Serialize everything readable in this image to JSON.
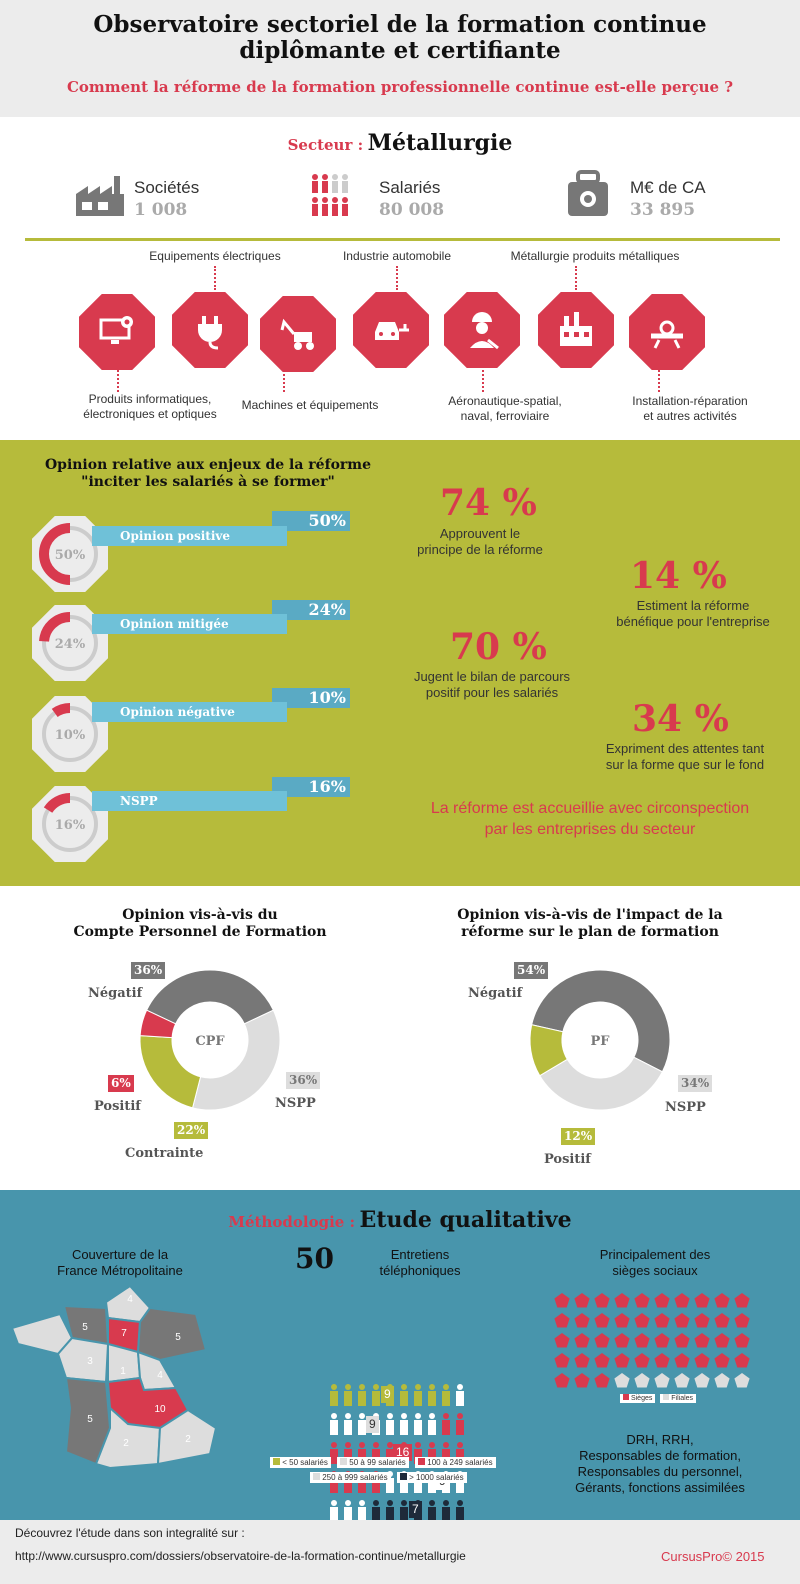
{
  "header": {
    "title_line1": "Observatoire sectoriel de la formation continue",
    "title_line2": "diplômante et certifiante",
    "subtitle": "Comment la réforme de la formation professionnelle continue est-elle perçue ?"
  },
  "sector": {
    "label": "Secteur :",
    "name": "Métallurgie",
    "stats": [
      {
        "label": "Sociétés",
        "value": "1 008",
        "icon": "factory-icon"
      },
      {
        "label": "Salariés",
        "value": "80 008",
        "icon": "people-icon"
      },
      {
        "label": "M€ de CA",
        "value": "33 895",
        "icon": "money-bag-icon"
      }
    ],
    "subsectors": {
      "top": [
        "Equipements électriques",
        "Industrie automobile",
        "Métallurgie produits métalliques"
      ],
      "bottom": [
        {
          "line1": "Produits informatiques,",
          "line2": "électroniques et optiques"
        },
        {
          "line1": "Machines et équipements",
          "line2": ""
        },
        {
          "line1": "Aéronautique-spatial,",
          "line2": "naval, ferroviaire"
        },
        {
          "line1": "Installation-réparation",
          "line2": "et autres activités"
        }
      ]
    }
  },
  "opinion": {
    "title_line1": "Opinion relative aux enjeux de la réforme",
    "title_line2": "\"inciter les salariés à se former\"",
    "rows": [
      {
        "label": "Opinion positive",
        "pct": "50%",
        "value": 50
      },
      {
        "label": "Opinion mitigée",
        "pct": "24%",
        "value": 24
      },
      {
        "label": "Opinion négative",
        "pct": "10%",
        "value": 10
      },
      {
        "label": "NSPP",
        "pct": "16%",
        "value": 16
      }
    ],
    "facts": [
      {
        "pct": "74 %",
        "line1": "Approuvent le",
        "line2": "principe de la réforme"
      },
      {
        "pct": "14 %",
        "line1": "Estiment la réforme",
        "line2": "bénéfique pour l'entreprise"
      },
      {
        "pct": "70 %",
        "line1": "Jugent le bilan de parcours",
        "line2": "positif pour les salariés"
      },
      {
        "pct": "34 %",
        "line1": "Expriment des attentes tant",
        "line2": "sur la forme que sur le fond"
      }
    ],
    "conclusion_line1": "La réforme est accueillie avec circonspection",
    "conclusion_line2": "par les entreprises du secteur"
  },
  "chart_data": [
    {
      "type": "pie",
      "title": "Opinion vis-à-vis du Compte Personnel de Formation",
      "center_label": "CPF",
      "slices": [
        {
          "name": "Négatif",
          "value": 36,
          "label": "36%",
          "color": "#777777"
        },
        {
          "name": "NSPP",
          "value": 36,
          "label": "36%",
          "color": "#dddddd"
        },
        {
          "name": "Contrainte",
          "value": 22,
          "label": "22%",
          "color": "#b6bb3b"
        },
        {
          "name": "Positif",
          "value": 6,
          "label": "6%",
          "color": "#d83a4e"
        }
      ]
    },
    {
      "type": "pie",
      "title": "Opinion vis-à-vis de l'impact de la réforme sur le plan de formation",
      "center_label": "PF",
      "slices": [
        {
          "name": "Négatif",
          "value": 54,
          "label": "54%",
          "color": "#777777"
        },
        {
          "name": "NSPP",
          "value": 34,
          "label": "34%",
          "color": "#dddddd"
        },
        {
          "name": "Positif",
          "value": 12,
          "label": "12%",
          "color": "#b6bb3b"
        }
      ]
    }
  ],
  "donut_titles": {
    "cpf_line1": "Opinion vis-à-vis du",
    "cpf_line2": "Compte Personnel de Formation",
    "pf_line1": "Opinion vis-à-vis de l'impact de la",
    "pf_line2": "réforme sur le plan de formation"
  },
  "method": {
    "label": "Méthodologie :",
    "name": "Etude qualitative",
    "coverage_line1": "Couverture de la",
    "coverage_line2": "France Métropolitaine",
    "count": "50",
    "interviews_line1": "Entretiens",
    "interviews_line2": "téléphoniques",
    "sieges_line1": "Principalement des",
    "sieges_line2": "sièges sociaux",
    "map_numbers": [
      "4",
      "5",
      "7",
      "5",
      "4",
      "5",
      "10",
      "2",
      "2",
      "1",
      "3"
    ],
    "people_counts": {
      "lt50": 9,
      "50to99": 9,
      "100to249": 16,
      "250to999": 9,
      "gt1000": 7
    },
    "people_tags": [
      "9",
      "9",
      "16",
      "9",
      "7"
    ],
    "legend_sizes": [
      "< 50 salariés",
      "50 à 99 salariés",
      "100 à 249 salariés",
      "250 à 999 salariés",
      "> 1000 salariés"
    ],
    "legend_sieges": [
      "Sièges",
      "Filiales"
    ],
    "sieges_count": 43,
    "filiales_count": 7,
    "roles": [
      "DRH, RRH,",
      "Responsables de formation,",
      "Responsables du personnel,",
      "Gérants, fonctions assimilées"
    ]
  },
  "footer": {
    "line1": "Découvrez l'étude dans son integralité sur :",
    "url": "http://www.cursuspro.com/dossiers/observatoire-de-la-formation-continue/metallurgie",
    "brand": "CursusPro© 2015"
  }
}
